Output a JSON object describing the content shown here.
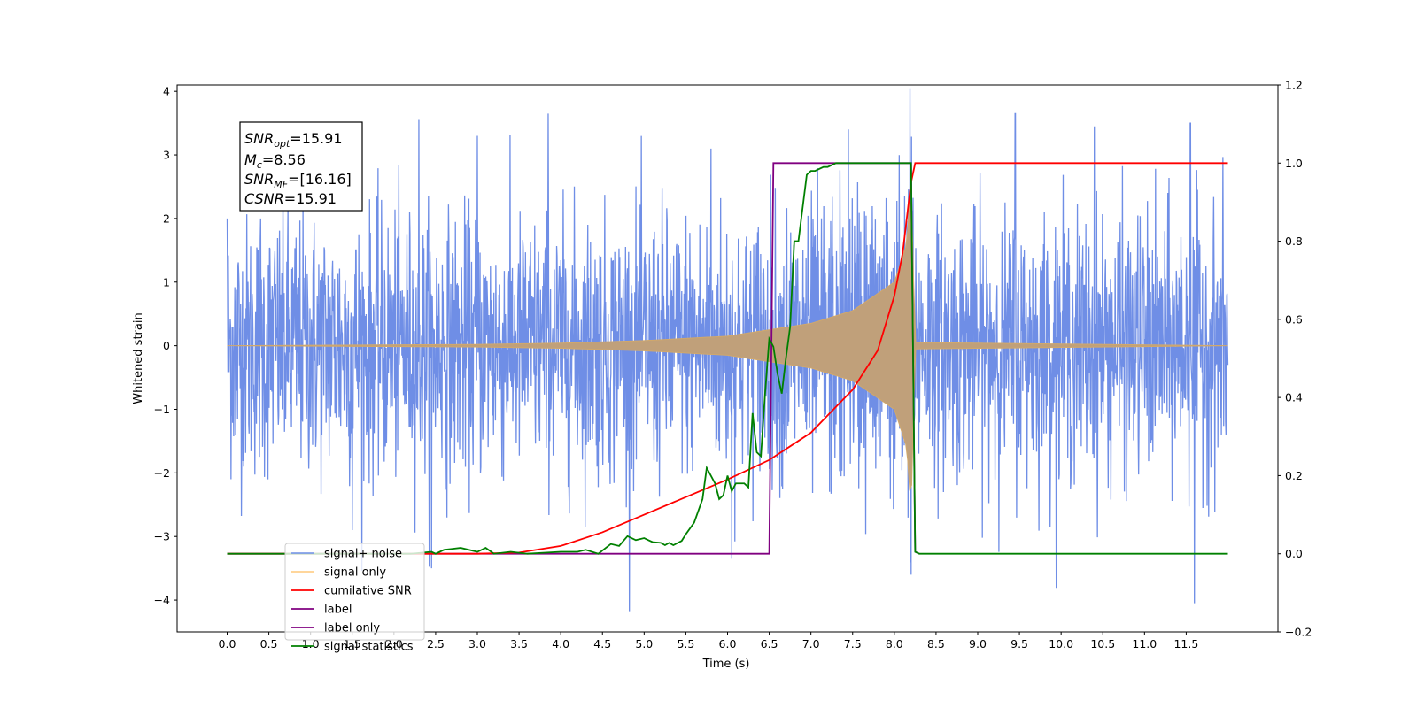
{
  "chart_data": {
    "type": "line",
    "title": "",
    "xlabel": "Time (s)",
    "ylabel": "Whitened strain",
    "y2label": "",
    "xlim": [
      -0.6,
      12.6
    ],
    "ylim": [
      -4.5,
      4.1
    ],
    "y2lim": [
      -0.2,
      1.2
    ],
    "x_ticks": [
      0.0,
      0.5,
      1.0,
      1.5,
      2.0,
      2.5,
      3.0,
      3.5,
      4.0,
      4.5,
      5.0,
      5.5,
      6.0,
      6.5,
      7.0,
      7.5,
      8.0,
      8.5,
      9.0,
      9.5,
      10.0,
      10.5,
      11.0,
      11.5
    ],
    "x_tick_labels": [
      "0.0",
      "0.5",
      "1.0",
      "1.5",
      "2.0",
      "2.5",
      "3.0",
      "3.5",
      "4.0",
      "4.5",
      "5.0",
      "5.5",
      "6.0",
      "6.5",
      "7.0",
      "7.5",
      "8.0",
      "8.5",
      "9.0",
      "9.5",
      "10.0",
      "10.5",
      "11.0",
      "11.5"
    ],
    "y_ticks": [
      -4,
      -3,
      -2,
      -1,
      0,
      1,
      2,
      3,
      4
    ],
    "y_tick_labels": [
      "−4",
      "−3",
      "−2",
      "−1",
      "0",
      "1",
      "2",
      "3",
      "4"
    ],
    "y2_ticks": [
      -0.2,
      0.0,
      0.2,
      0.4,
      0.6,
      0.8,
      1.0,
      1.2
    ],
    "y2_tick_labels": [
      "−0.2",
      "0.0",
      "0.2",
      "0.4",
      "0.6",
      "0.8",
      "1.0",
      "1.2"
    ],
    "legend_position": "lower-left",
    "annotation": {
      "snr_opt": {
        "main": "SNR",
        "sub": "opt",
        "value": "=15.91"
      },
      "mc": {
        "main": "M",
        "sub": "c",
        "value": "=8.56"
      },
      "snr_mf": {
        "main": "SNR",
        "sub": "MF",
        "value": "=[16.16]"
      },
      "csnr": {
        "main": "CSNR",
        "value": "=15.91"
      }
    },
    "series": [
      {
        "name": "signal+ noise",
        "axis": "left",
        "color": "#6f8ee6",
        "description_type": "noise",
        "x_range": [
          0.0,
          12.0
        ],
        "noise_sigma": 1.0,
        "notable_peaks": [
          [
            0.0,
            2.0
          ],
          [
            0.1,
            -1.4
          ],
          [
            0.4,
            2.0
          ],
          [
            1.5,
            -2.9
          ],
          [
            2.3,
            3.55
          ],
          [
            2.45,
            -3.5
          ],
          [
            3.0,
            3.3
          ],
          [
            3.85,
            3.65
          ],
          [
            5.8,
            3.1
          ],
          [
            6.05,
            -3.35
          ],
          [
            7.45,
            3.4
          ],
          [
            8.2,
            -3.6
          ],
          [
            9.45,
            3.65
          ],
          [
            10.4,
            3.45
          ],
          [
            11.55,
            3.5
          ],
          [
            11.6,
            -4.05
          ]
        ],
        "overlay_chirp_envelope": true
      },
      {
        "name": "signal only",
        "axis": "left",
        "color": "#ffb74d",
        "description_type": "chirp",
        "t_merge": 8.2,
        "envelope": [
          [
            0.0,
            0.0
          ],
          [
            3.0,
            0.02
          ],
          [
            4.0,
            0.04
          ],
          [
            5.0,
            0.08
          ],
          [
            6.0,
            0.15
          ],
          [
            7.0,
            0.35
          ],
          [
            7.5,
            0.55
          ],
          [
            8.0,
            1.0
          ],
          [
            8.15,
            1.6
          ],
          [
            8.2,
            2.6
          ],
          [
            8.25,
            0.05
          ],
          [
            12.0,
            0.0
          ]
        ]
      },
      {
        "name": "cumilative SNR",
        "axis": "right",
        "color": "#ff0000",
        "x": [
          0.0,
          3.0,
          3.5,
          4.0,
          4.5,
          5.0,
          5.5,
          6.0,
          6.5,
          7.0,
          7.5,
          7.8,
          8.0,
          8.1,
          8.15,
          8.2,
          8.25,
          12.0
        ],
        "y": [
          0.0,
          0.0,
          0.003,
          0.02,
          0.055,
          0.1,
          0.145,
          0.19,
          0.24,
          0.31,
          0.42,
          0.52,
          0.66,
          0.77,
          0.86,
          0.95,
          1.0,
          1.0
        ]
      },
      {
        "name": "label",
        "axis": "right",
        "color": "#800080",
        "x": [
          0.0,
          6.5,
          6.55,
          8.2,
          8.25,
          8.3
        ],
        "y": [
          0.0,
          0.0,
          1.0,
          1.0,
          0.005,
          0.0
        ]
      },
      {
        "name": "label only",
        "axis": "right",
        "color": "#800080",
        "hidden_behind_legend": true,
        "x": [],
        "y": []
      },
      {
        "name": "signal statistics",
        "axis": "right",
        "color": "#008000",
        "x": [
          0.0,
          2.2,
          2.45,
          2.5,
          2.6,
          2.8,
          3.0,
          3.1,
          3.2,
          3.4,
          3.6,
          4.0,
          4.2,
          4.3,
          4.45,
          4.6,
          4.7,
          4.8,
          4.9,
          5.0,
          5.05,
          5.1,
          5.2,
          5.25,
          5.3,
          5.35,
          5.45,
          5.5,
          5.6,
          5.7,
          5.75,
          5.85,
          5.9,
          5.95,
          6.0,
          6.05,
          6.1,
          6.2,
          6.25,
          6.3,
          6.35,
          6.4,
          6.45,
          6.5,
          6.55,
          6.6,
          6.65,
          6.7,
          6.75,
          6.8,
          6.85,
          6.95,
          7.0,
          7.05,
          7.15,
          7.2,
          7.3,
          7.4,
          7.5,
          7.6,
          8.0,
          8.2,
          8.25,
          8.3,
          12.0
        ],
        "y": [
          0.0,
          0.0,
          0.005,
          0.0,
          0.01,
          0.015,
          0.005,
          0.015,
          0.0,
          0.005,
          0.0,
          0.005,
          0.005,
          0.01,
          0.0,
          0.025,
          0.02,
          0.045,
          0.035,
          0.04,
          0.035,
          0.03,
          0.028,
          0.022,
          0.028,
          0.022,
          0.033,
          0.05,
          0.08,
          0.14,
          0.22,
          0.18,
          0.14,
          0.15,
          0.2,
          0.16,
          0.18,
          0.18,
          0.17,
          0.36,
          0.26,
          0.25,
          0.41,
          0.55,
          0.53,
          0.46,
          0.41,
          0.5,
          0.58,
          0.8,
          0.8,
          0.97,
          0.98,
          0.98,
          0.99,
          0.99,
          1.0,
          1.0,
          1.0,
          1.0,
          1.0,
          1.0,
          0.005,
          0.0,
          0.0
        ]
      }
    ]
  }
}
